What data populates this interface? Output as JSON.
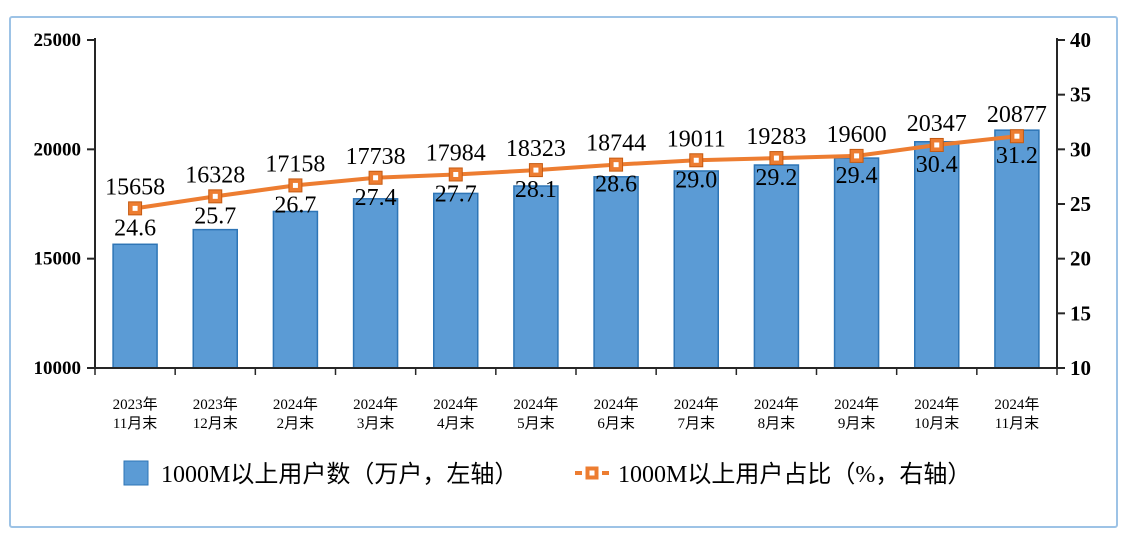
{
  "chart_data": {
    "type": "combo-bar-line",
    "title": "",
    "categories": [
      [
        "2023年",
        "11月末"
      ],
      [
        "2023年",
        "12月末"
      ],
      [
        "2024年",
        "2月末"
      ],
      [
        "2024年",
        "3月末"
      ],
      [
        "2024年",
        "4月末"
      ],
      [
        "2024年",
        "5月末"
      ],
      [
        "2024年",
        "6月末"
      ],
      [
        "2024年",
        "7月末"
      ],
      [
        "2024年",
        "8月末"
      ],
      [
        "2024年",
        "9月末"
      ],
      [
        "2024年",
        "10月末"
      ],
      [
        "2024年",
        "11月末"
      ]
    ],
    "series": [
      {
        "name": "1000M以上用户数（万户，左轴）",
        "type": "bar",
        "axis": "left",
        "values": [
          15658,
          16328,
          17158,
          17738,
          17984,
          18323,
          18744,
          19011,
          19283,
          19600,
          20347,
          20877
        ],
        "color": "#5B9BD5",
        "border_color": "#2E75B6"
      },
      {
        "name": "1000M以上用户占比（%，右轴）",
        "type": "line",
        "axis": "right",
        "values": [
          24.6,
          25.7,
          26.7,
          27.4,
          27.7,
          28.1,
          28.6,
          29.0,
          29.2,
          29.4,
          30.4,
          31.2
        ],
        "labels": [
          "24.6",
          "25.7",
          "26.7",
          "27.4",
          "27.7",
          "28.1",
          "28.6",
          "29.0",
          "29.2",
          "29.4",
          "30.4",
          "31.2"
        ],
        "color": "#ED7D31",
        "marker": "square-with-white-center"
      }
    ],
    "left_axis": {
      "min": 10000,
      "max": 25000,
      "step": 5000,
      "ticks": [
        "25000",
        "20000",
        "15000",
        "10000"
      ]
    },
    "right_axis": {
      "min": 10,
      "max": 40,
      "step": 5,
      "ticks": [
        "40",
        "35",
        "30",
        "25",
        "20",
        "15",
        "10"
      ]
    },
    "legend": {
      "position": "bottom",
      "items": [
        {
          "label": "1000M以上用户数（万户，左轴）",
          "marker": "square",
          "color": "#5B9BD5",
          "border_color": "#2E75B6"
        },
        {
          "label": "1000M以上用户占比（%，右轴）",
          "marker": "dash-square-dash",
          "color": "#ED7D31"
        }
      ]
    },
    "style": {
      "frame_color": "#9DC3E6",
      "axis_color": "#262626",
      "background": "#ffffff",
      "grid": false
    }
  }
}
